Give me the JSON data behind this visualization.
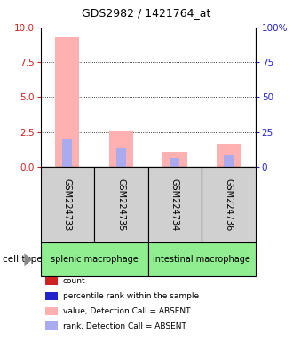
{
  "title": "GDS2982 / 1421764_at",
  "samples": [
    "GSM224733",
    "GSM224735",
    "GSM224734",
    "GSM224736"
  ],
  "cell_types": [
    {
      "label": "splenic macrophage",
      "span": [
        0,
        2
      ]
    },
    {
      "label": "intestinal macrophage",
      "span": [
        2,
        4
      ]
    }
  ],
  "pink_bars": [
    9.3,
    2.55,
    1.1,
    1.65
  ],
  "blue_bars": [
    2.0,
    1.35,
    0.65,
    0.85
  ],
  "ylim": [
    0,
    10
  ],
  "y_ticks": [
    0,
    2.5,
    5,
    7.5,
    10
  ],
  "y_right_ticks": [
    0,
    25,
    50,
    75,
    100
  ],
  "y_right_labels": [
    "0",
    "25",
    "50",
    "75",
    "100%"
  ],
  "left_color": "#cc2222",
  "right_color": "#2222cc",
  "pink_color": "#ffb0b0",
  "blue_color": "#aaaaee",
  "bar_width": 0.45,
  "sample_bg": "#d0d0d0",
  "cell_bg": "#90ee90",
  "legend_items": [
    {
      "color": "#cc2222",
      "label": "count"
    },
    {
      "color": "#2222cc",
      "label": "percentile rank within the sample"
    },
    {
      "color": "#ffb0b0",
      "label": "value, Detection Call = ABSENT"
    },
    {
      "color": "#aaaaee",
      "label": "rank, Detection Call = ABSENT"
    }
  ]
}
